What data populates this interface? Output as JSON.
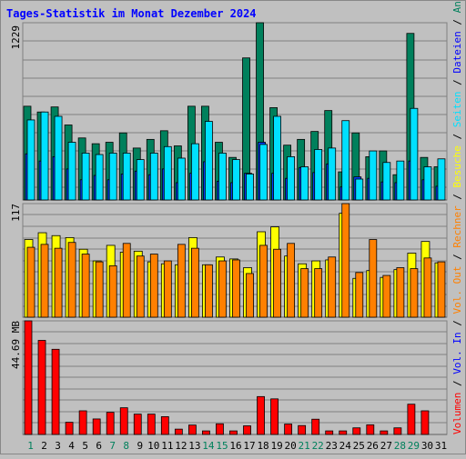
{
  "colors": {
    "background": "#c0c0c0",
    "border": "#999999",
    "title": "#0000ff",
    "grid": "#808080",
    "anfragen": "#00805c",
    "dateien": "#0040ff",
    "seiten": "#00e0ff",
    "besuche": "#ffff00",
    "rechner": "#ff8000",
    "vol_in": "#0000ff",
    "vol_out": "#ff8000",
    "volumen": "#ff0000",
    "day_normal": "#000000",
    "day_weekend": "#00805c"
  },
  "right_label_segments": [
    {
      "text": "Volumen",
      "color": "#ff0000"
    },
    {
      "text": " / ",
      "color": "#000000"
    },
    {
      "text": "Vol. In",
      "color": "#0000ff"
    },
    {
      "text": " / ",
      "color": "#000000"
    },
    {
      "text": "Vol. Out",
      "color": "#ff8000"
    },
    {
      "text": " / ",
      "color": "#000000"
    },
    {
      "text": "Rechner",
      "color": "#ff8000"
    },
    {
      "text": " / ",
      "color": "#000000"
    },
    {
      "text": "Besuche",
      "color": "#ffff00"
    },
    {
      "text": " / ",
      "color": "#000000"
    },
    {
      "text": "Seiten",
      "color": "#00e0ff"
    },
    {
      "text": " / ",
      "color": "#000000"
    },
    {
      "text": "Dateien",
      "color": "#0000ff"
    },
    {
      "text": " / ",
      "color": "#000000"
    },
    {
      "text": "Anfragen",
      "color": "#00805c"
    }
  ],
  "chart_data": {
    "type": "bar",
    "title": "Tages-Statistik im Monat Dezember 2024",
    "categories": [
      "1",
      "2",
      "3",
      "4",
      "5",
      "6",
      "7",
      "8",
      "9",
      "10",
      "11",
      "12",
      "13",
      "14",
      "15",
      "16",
      "17",
      "18",
      "19",
      "20",
      "21",
      "22",
      "23",
      "24",
      "25",
      "26",
      "27",
      "28",
      "29",
      "30",
      "31"
    ],
    "weekend_days": [
      1,
      7,
      8,
      14,
      15,
      21,
      22,
      28,
      29
    ],
    "panels": [
      {
        "name": "requests",
        "ymax_label": "1229",
        "ymax": 1229,
        "series": [
          {
            "name": "Anfragen",
            "values": [
              650,
              610,
              645,
              520,
              430,
              390,
              400,
              465,
              360,
              420,
              480,
              375,
              650,
              650,
              400,
              295,
              985,
              1229,
              640,
              380,
              420,
              475,
              620,
              195,
              465,
              300,
              340,
              175,
              1155,
              295,
              230
            ]
          },
          {
            "name": "Dateien",
            "values": [
              320,
              270,
              300,
              215,
              140,
              170,
              140,
              180,
              200,
              175,
              215,
              120,
              185,
              265,
              130,
              120,
              185,
              400,
              185,
              150,
              225,
              190,
              250,
              90,
              160,
              150,
              125,
              120,
              270,
              140,
              95
            ]
          },
          {
            "name": "Seiten",
            "values": [
              555,
              610,
              580,
              400,
              325,
              315,
              325,
              325,
              280,
              325,
              370,
              290,
              390,
              545,
              325,
              280,
              180,
              385,
              580,
              300,
              230,
              350,
              360,
              550,
              145,
              340,
              260,
              270,
              635,
              230,
              285
            ]
          }
        ]
      },
      {
        "name": "visits",
        "ymax_label": "117",
        "ymax": 117,
        "series": [
          {
            "name": "Besuche",
            "values": [
              80,
              87,
              84,
              82,
              70,
              58,
              74,
              67,
              68,
              57,
              55,
              54,
              82,
              54,
              62,
              60,
              51,
              88,
              93,
              63,
              55,
              58,
              59,
              107,
              40,
              48,
              41,
              49,
              66,
              78,
              56
            ]
          },
          {
            "name": "Rechner",
            "values": [
              72,
              75,
              71,
              77,
              65,
              57,
              53,
              76,
              63,
              65,
              58,
              75,
              71,
              54,
              58,
              59,
              45,
              74,
              70,
              76,
              50,
              50,
              62,
              117,
              46,
              80,
              43,
              51,
              50,
              61,
              57
            ]
          }
        ]
      },
      {
        "name": "volume",
        "ymax_label": "44.69 MB",
        "ymax": 44.69,
        "series": [
          {
            "name": "Volumen",
            "values": [
              44.69,
              37.0,
              33.5,
              4.8,
              9.3,
              6.1,
              8.7,
              10.5,
              8.0,
              8.0,
              7.0,
              2.1,
              3.7,
              1.4,
              4.2,
              1.4,
              3.4,
              14.9,
              14.0,
              4.1,
              3.5,
              6.0,
              1.4,
              1.4,
              2.6,
              3.8,
              1.4,
              2.6,
              11.9,
              9.3,
              0
            ],
            "color": "#ff0000"
          }
        ]
      }
    ]
  }
}
